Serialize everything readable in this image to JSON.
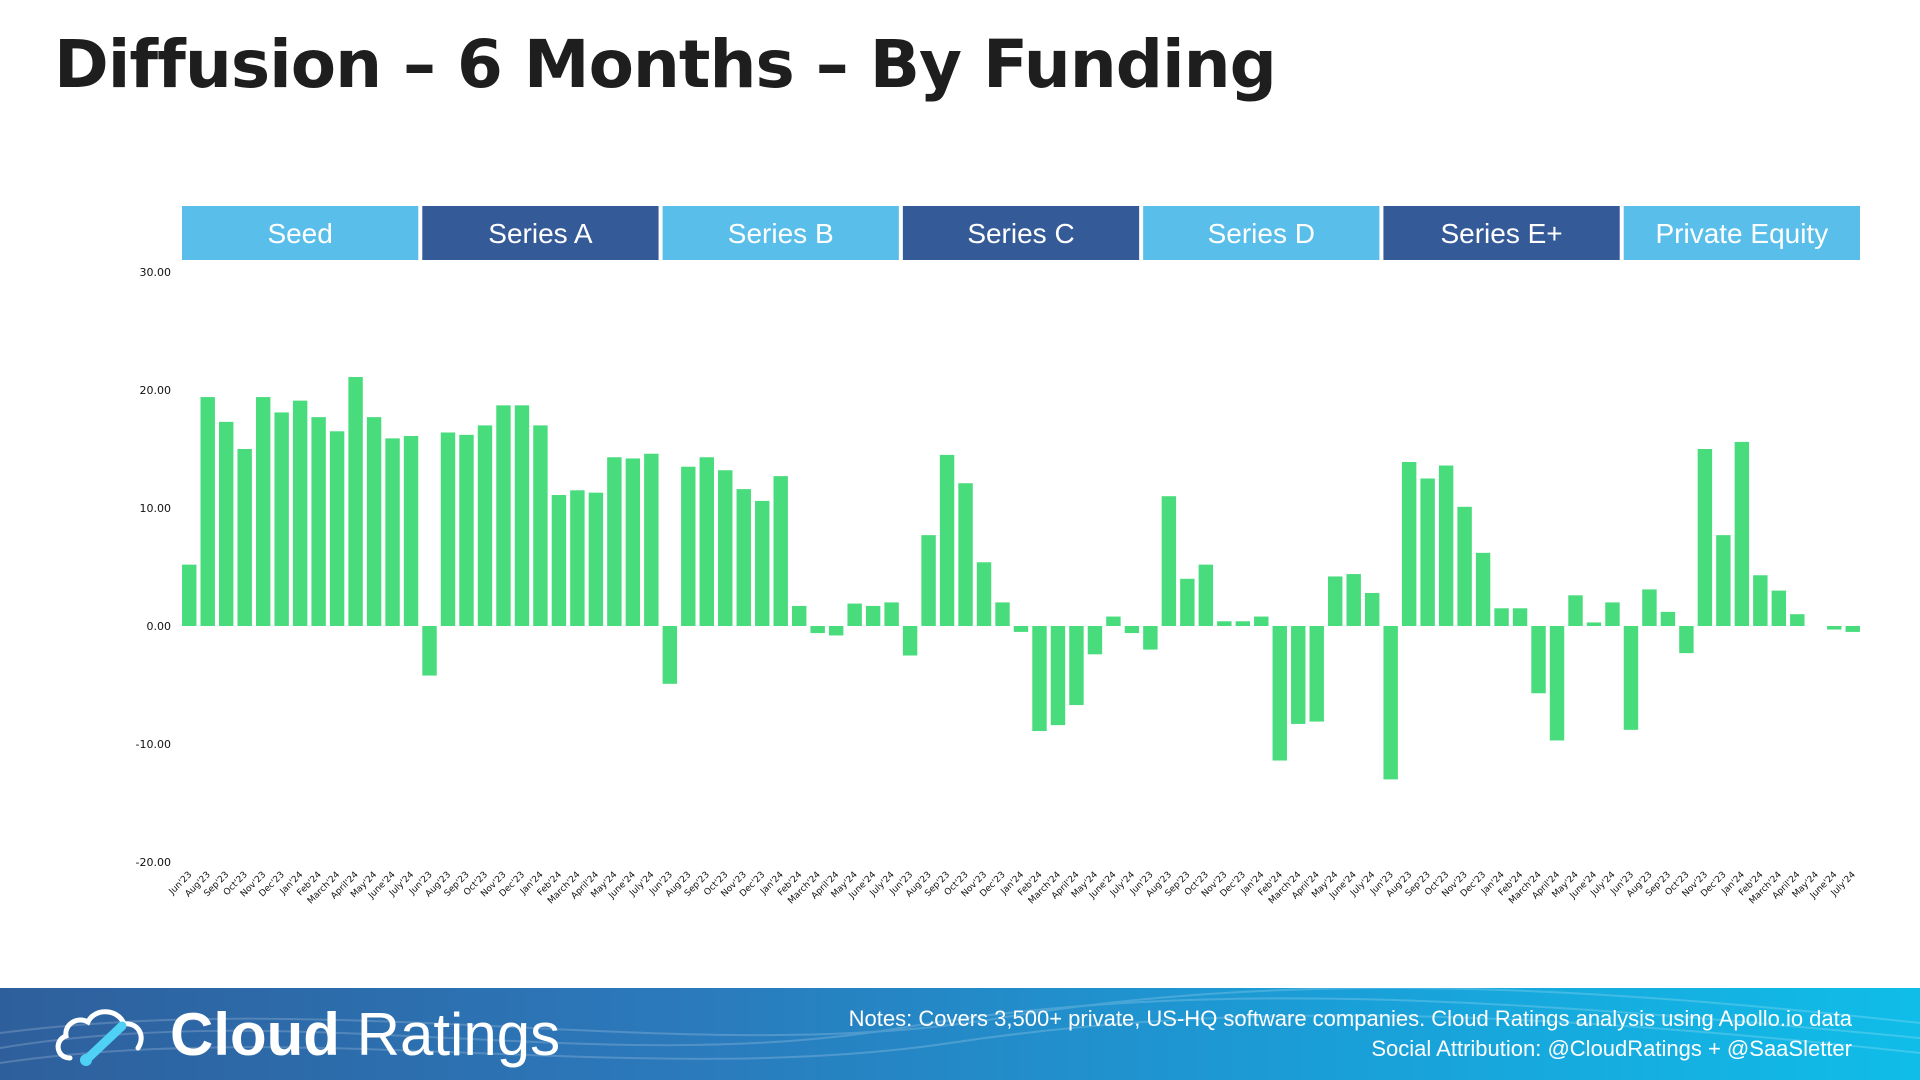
{
  "title": "Diffusion – 6 Months – By Funding",
  "footer": {
    "brand_bold": "Cloud",
    "brand_light": "Ratings",
    "notes_line1": "Notes: Covers 3,500+ private, US-HQ software companies. Cloud Ratings analysis using Apollo.io data",
    "notes_line2": "Social Attribution: @CloudRatings + @SaaSletter"
  },
  "colors": {
    "bar": "#48dc7c",
    "header_light": "#59bfea",
    "header_dark": "#355a98"
  },
  "chart_data": {
    "type": "bar",
    "ylim": [
      -20,
      30
    ],
    "yticks": [
      "30.00",
      "20.00",
      "10.00",
      "0.00",
      "-10.00",
      "-20.00"
    ],
    "grid": false,
    "groups": [
      {
        "name": "Seed",
        "style": "light",
        "categories": [
          "Jun'23",
          "Aug'23",
          "Sep'23",
          "Oct'23",
          "Nov'23",
          "Dec'23",
          "Jan'24",
          "Feb'24",
          "March'24",
          "April'24",
          "May'24",
          "June'24",
          "July'24"
        ],
        "values": [
          5.2,
          19.4,
          17.3,
          15.0,
          19.4,
          18.1,
          19.1,
          17.7,
          16.5,
          21.1,
          17.7,
          15.9,
          16.1
        ]
      },
      {
        "name": "Series A",
        "style": "dark",
        "categories": [
          "Jun'23",
          "Aug'23",
          "Sep'23",
          "Oct'23",
          "Nov'23",
          "Dec'23",
          "Jan'24",
          "Feb'24",
          "March'24",
          "April'24",
          "May'24",
          "June'24",
          "July'24"
        ],
        "values": [
          -4.2,
          16.4,
          16.2,
          17.0,
          18.7,
          18.7,
          17.0,
          11.1,
          11.5,
          11.3,
          14.3,
          14.2,
          14.6
        ]
      },
      {
        "name": "Series B",
        "style": "light",
        "categories": [
          "Jun'23",
          "Aug'23",
          "Sep'23",
          "Oct'23",
          "Nov'23",
          "Dec'23",
          "Jan'24",
          "Feb'24",
          "March'24",
          "April'24",
          "May'24",
          "June'24",
          "July'24"
        ],
        "values": [
          -4.9,
          13.5,
          14.3,
          13.2,
          11.6,
          10.6,
          12.7,
          1.7,
          -0.6,
          -0.8,
          1.9,
          1.7,
          2.0
        ]
      },
      {
        "name": "Series C",
        "style": "dark",
        "categories": [
          "Jun'23",
          "Aug'23",
          "Sep'23",
          "Oct'23",
          "Nov'23",
          "Dec'23",
          "Jan'24",
          "Feb'24",
          "March'24",
          "April'24",
          "May'24",
          "June'24",
          "July'24"
        ],
        "values": [
          -2.5,
          7.7,
          14.5,
          12.1,
          5.4,
          2.0,
          -0.5,
          -8.9,
          -8.4,
          -6.7,
          -2.4,
          0.8,
          -0.6
        ]
      },
      {
        "name": "Series D",
        "style": "light",
        "categories": [
          "Jun'23",
          "Aug'23",
          "Sep'23",
          "Oct'23",
          "Nov'23",
          "Dec'23",
          "Jan'24",
          "Feb'24",
          "March'24",
          "April'24",
          "May'24",
          "June'24",
          "July'24"
        ],
        "values": [
          -2.0,
          11.0,
          4.0,
          5.2,
          0.4,
          0.4,
          0.8,
          -11.4,
          -8.3,
          -8.1,
          4.2,
          4.4,
          2.8
        ]
      },
      {
        "name": "Series E+",
        "style": "dark",
        "categories": [
          "Jun'23",
          "Aug'23",
          "Sep'23",
          "Oct'23",
          "Nov'23",
          "Dec'23",
          "Jan'24",
          "Feb'24",
          "March'24",
          "April'24",
          "May'24",
          "June'24",
          "July'24"
        ],
        "values": [
          -13.0,
          13.9,
          12.5,
          13.6,
          10.1,
          6.2,
          1.5,
          1.5,
          -5.7,
          -9.7,
          2.6,
          0.3,
          2.0
        ]
      },
      {
        "name": "Private Equity",
        "style": "light",
        "categories": [
          "Jun'23",
          "Aug'23",
          "Sep'23",
          "Oct'23",
          "Nov'23",
          "Dec'23",
          "Jan'24",
          "Feb'24",
          "March'24",
          "April'24",
          "May'24",
          "June'24",
          "July'24"
        ],
        "values": [
          -8.8,
          3.1,
          1.2,
          -2.3,
          15.0,
          7.7,
          15.6,
          4.3,
          3.0,
          1.0,
          0.0,
          -0.3,
          -0.5
        ]
      }
    ]
  }
}
